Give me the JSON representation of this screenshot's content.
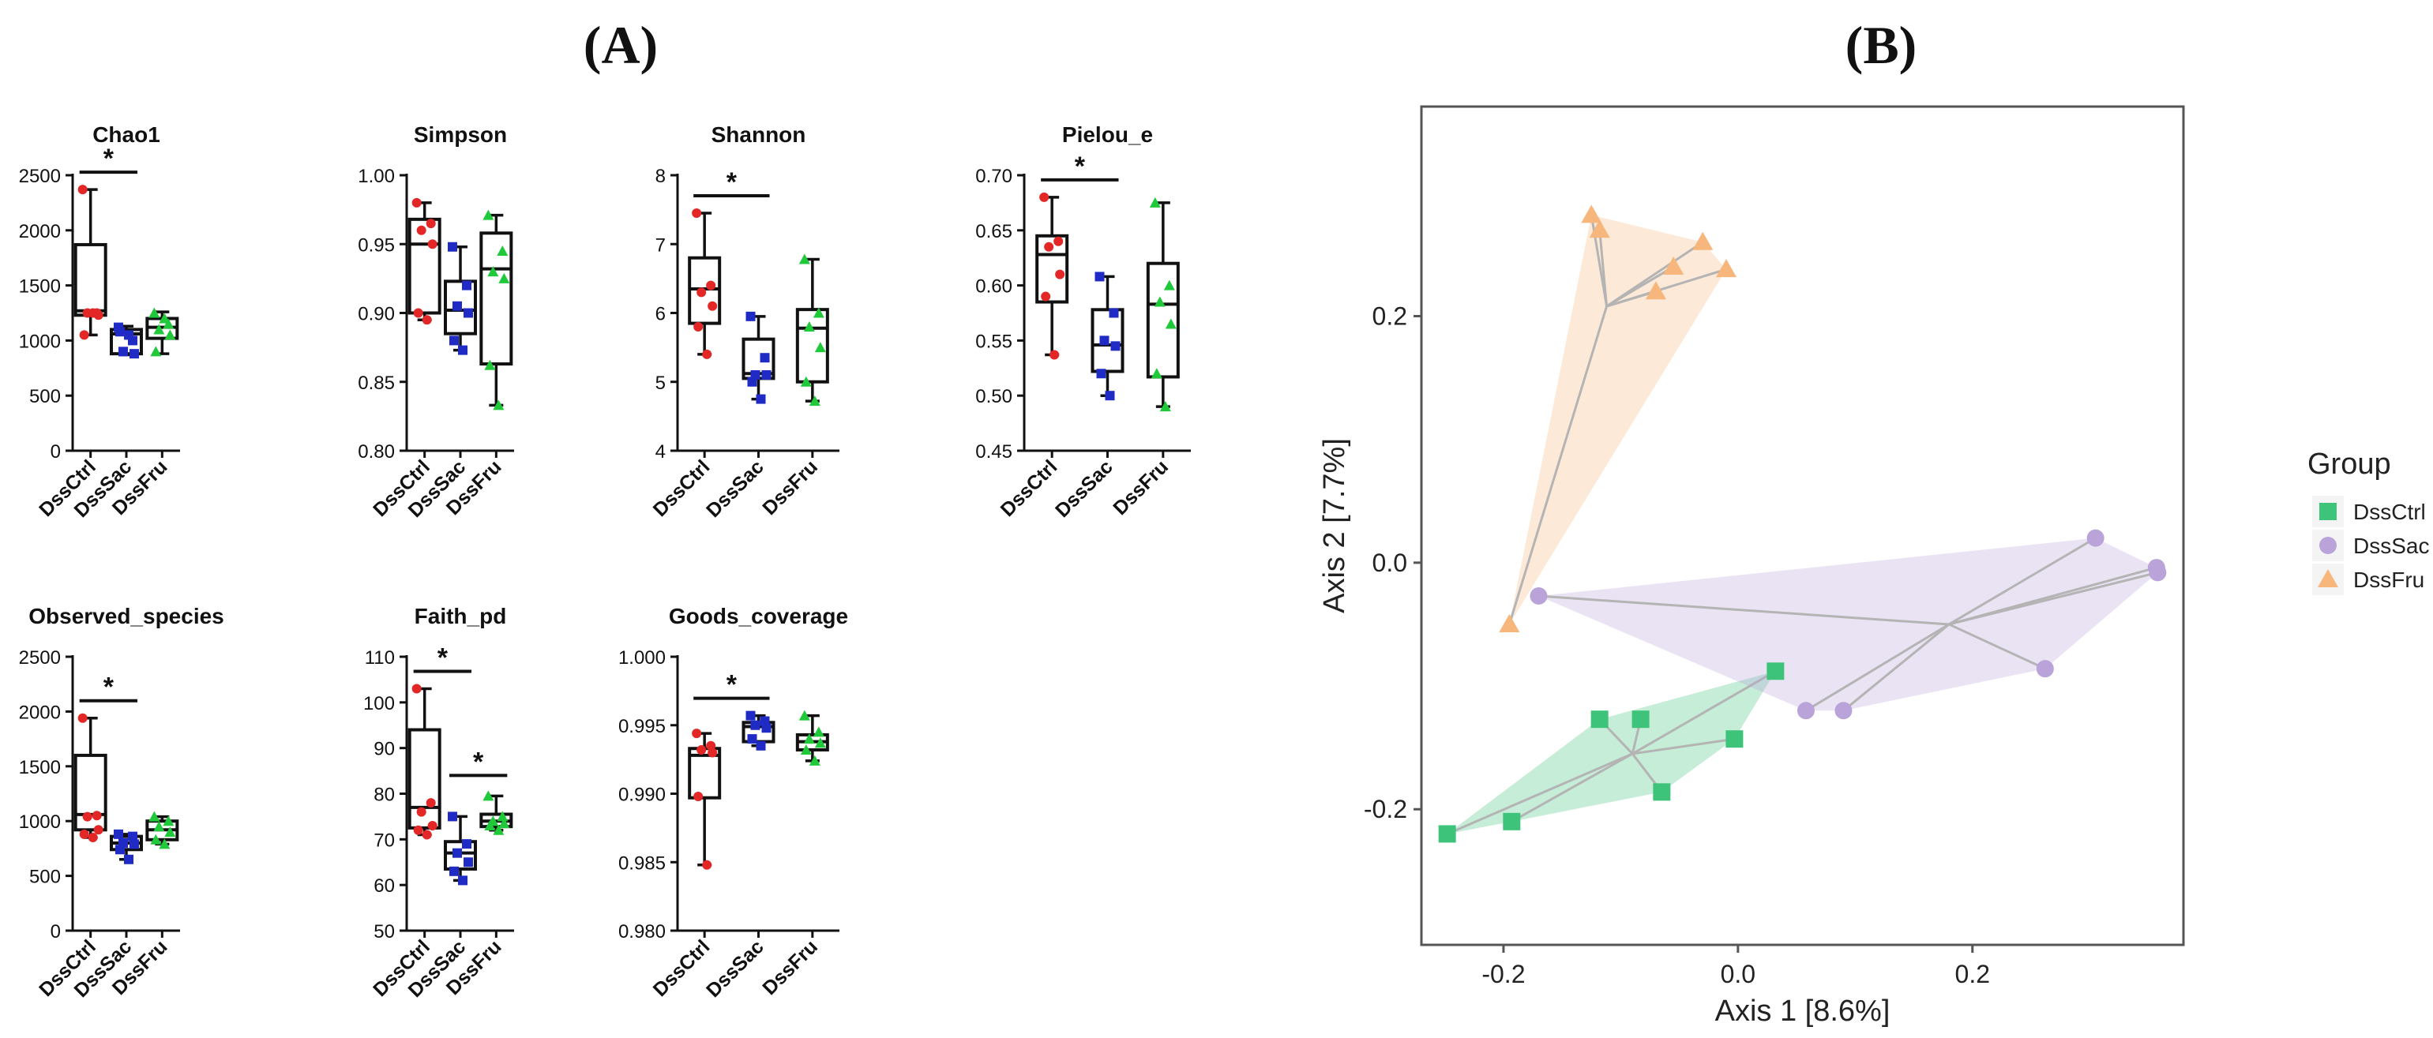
{
  "panels": {
    "a_label": "(A)",
    "b_label": "(B)"
  },
  "colors": {
    "DssCtrl_box": "#e32626",
    "DssSac_box": "#1f2bc4",
    "DssFru_box": "#1fc93a",
    "DssCtrl_pcoa": "#3ec47a",
    "DssSac_pcoa": "#b9a3d9",
    "DssFru_pcoa": "#f7b77c"
  },
  "chart_data": [
    {
      "type": "box",
      "title": "Chao1",
      "categories": [
        "DssCtrl",
        "DssSac",
        "DssFru"
      ],
      "ylim": [
        0,
        2500
      ],
      "yticks": [
        "0",
        "500",
        "1000",
        "1500",
        "2000",
        "2500"
      ],
      "groups": [
        {
          "min": 1050,
          "q1": 1230,
          "median": 1270,
          "q3": 1870,
          "max": 2370,
          "points": [
            2370,
            1250,
            1250,
            1230,
            1050,
            1250
          ]
        },
        {
          "min": 870,
          "q1": 880,
          "median": 1060,
          "q3": 1100,
          "max": 1130,
          "points": [
            1120,
            1000,
            900,
            880,
            1080,
            1050
          ]
        },
        {
          "min": 880,
          "q1": 1020,
          "median": 1120,
          "q3": 1200,
          "max": 1260,
          "points": [
            1250,
            1150,
            1100,
            1050,
            900,
            1200
          ]
        }
      ],
      "significance": [
        {
          "from": 0,
          "to": 1,
          "label": "*"
        }
      ]
    },
    {
      "type": "box",
      "title": "Simpson",
      "categories": [
        "DssCtrl",
        "DssSac",
        "DssFru"
      ],
      "ylim": [
        0.8,
        1.0
      ],
      "yticks": [
        "0.80",
        "0.85",
        "0.90",
        "0.95",
        "1.00"
      ],
      "groups": [
        {
          "min": 0.895,
          "q1": 0.9,
          "median": 0.95,
          "q3": 0.968,
          "max": 0.98,
          "points": [
            0.98,
            0.965,
            0.96,
            0.95,
            0.9,
            0.895
          ]
        },
        {
          "min": 0.873,
          "q1": 0.885,
          "median": 0.902,
          "q3": 0.923,
          "max": 0.948,
          "points": [
            0.948,
            0.92,
            0.905,
            0.9,
            0.88,
            0.873
          ]
        },
        {
          "min": 0.833,
          "q1": 0.863,
          "median": 0.932,
          "q3": 0.958,
          "max": 0.971,
          "points": [
            0.971,
            0.945,
            0.93,
            0.925,
            0.862,
            0.833
          ]
        }
      ],
      "significance": []
    },
    {
      "type": "box",
      "title": "Shannon",
      "categories": [
        "DssCtrl",
        "DssSac",
        "DssFru"
      ],
      "ylim": [
        4,
        8
      ],
      "yticks": [
        "4",
        "5",
        "6",
        "7",
        "8"
      ],
      "groups": [
        {
          "min": 5.4,
          "q1": 5.85,
          "median": 6.35,
          "q3": 6.8,
          "max": 7.45,
          "points": [
            7.45,
            6.4,
            6.3,
            6.1,
            5.8,
            5.4
          ]
        },
        {
          "min": 4.75,
          "q1": 5.05,
          "median": 5.12,
          "q3": 5.62,
          "max": 5.95,
          "points": [
            5.95,
            5.35,
            5.1,
            5.1,
            5.0,
            4.75
          ]
        },
        {
          "min": 4.72,
          "q1": 5.0,
          "median": 5.78,
          "q3": 6.05,
          "max": 6.78,
          "points": [
            6.78,
            6.0,
            5.8,
            5.5,
            5.0,
            4.72
          ]
        }
      ],
      "significance": [
        {
          "from": 0,
          "to": 1,
          "label": "*"
        }
      ]
    },
    {
      "type": "box",
      "title": "Pielou_e",
      "categories": [
        "DssCtrl",
        "DssSac",
        "DssFru"
      ],
      "ylim": [
        0.45,
        0.7
      ],
      "yticks": [
        "0.45",
        "0.50",
        "0.55",
        "0.60",
        "0.65",
        "0.70"
      ],
      "groups": [
        {
          "min": 0.537,
          "q1": 0.585,
          "median": 0.628,
          "q3": 0.645,
          "max": 0.68,
          "points": [
            0.68,
            0.64,
            0.635,
            0.61,
            0.59,
            0.537
          ]
        },
        {
          "min": 0.5,
          "q1": 0.522,
          "median": 0.546,
          "q3": 0.578,
          "max": 0.608,
          "points": [
            0.608,
            0.575,
            0.55,
            0.545,
            0.52,
            0.5
          ]
        },
        {
          "min": 0.49,
          "q1": 0.517,
          "median": 0.583,
          "q3": 0.62,
          "max": 0.675,
          "points": [
            0.675,
            0.6,
            0.585,
            0.565,
            0.52,
            0.49
          ]
        }
      ],
      "significance": [
        {
          "from": 0,
          "to": 1,
          "label": "*"
        }
      ]
    },
    {
      "type": "box",
      "title": "Observed_species",
      "categories": [
        "DssCtrl",
        "DssSac",
        "DssFru"
      ],
      "ylim": [
        0,
        2500
      ],
      "yticks": [
        "0",
        "500",
        "1000",
        "1500",
        "2000",
        "2500"
      ],
      "groups": [
        {
          "min": 850,
          "q1": 920,
          "median": 1060,
          "q3": 1600,
          "max": 1940,
          "points": [
            1940,
            1050,
            1040,
            920,
            880,
            850
          ]
        },
        {
          "min": 650,
          "q1": 740,
          "median": 800,
          "q3": 860,
          "max": 880,
          "points": [
            880,
            860,
            800,
            790,
            740,
            650
          ]
        },
        {
          "min": 790,
          "q1": 830,
          "median": 920,
          "q3": 1000,
          "max": 1040,
          "points": [
            1040,
            1000,
            950,
            900,
            830,
            790
          ]
        }
      ],
      "significance": [
        {
          "from": 0,
          "to": 1,
          "label": "*"
        }
      ]
    },
    {
      "type": "box",
      "title": "Faith_pd",
      "categories": [
        "DssCtrl",
        "DssSac",
        "DssFru"
      ],
      "ylim": [
        50,
        110
      ],
      "yticks": [
        "50",
        "60",
        "70",
        "80",
        "90",
        "100",
        "110"
      ],
      "groups": [
        {
          "min": 71,
          "q1": 72.5,
          "median": 77,
          "q3": 94,
          "max": 103,
          "points": [
            103,
            78,
            76,
            73,
            72,
            71
          ]
        },
        {
          "min": 61,
          "q1": 63.5,
          "median": 67,
          "q3": 69.5,
          "max": 75,
          "points": [
            75,
            69,
            67,
            65,
            63,
            61
          ]
        },
        {
          "min": 72,
          "q1": 72.8,
          "median": 74,
          "q3": 75.5,
          "max": 79.5,
          "points": [
            79.5,
            75,
            74,
            73.5,
            73,
            72
          ]
        }
      ],
      "significance": [
        {
          "from": 0,
          "to": 1,
          "label": "*"
        },
        {
          "from": 1,
          "to": 2,
          "label": "*"
        }
      ]
    },
    {
      "type": "box",
      "title": "Goods_coverage",
      "categories": [
        "DssCtrl",
        "DssSac",
        "DssFru"
      ],
      "ylim": [
        0.98,
        1.0
      ],
      "yticks": [
        "0.980",
        "0.985",
        "0.990",
        "0.995",
        "1.000"
      ],
      "groups": [
        {
          "min": 0.9848,
          "q1": 0.9897,
          "median": 0.9928,
          "q3": 0.9933,
          "max": 0.9944,
          "points": [
            0.9944,
            0.9935,
            0.9932,
            0.993,
            0.9898,
            0.9848
          ]
        },
        {
          "min": 0.9935,
          "q1": 0.9938,
          "median": 0.9949,
          "q3": 0.9952,
          "max": 0.9957,
          "points": [
            0.9957,
            0.9953,
            0.995,
            0.9948,
            0.994,
            0.9935
          ]
        },
        {
          "min": 0.9924,
          "q1": 0.9932,
          "median": 0.9938,
          "q3": 0.9943,
          "max": 0.9957,
          "points": [
            0.9957,
            0.9945,
            0.994,
            0.9937,
            0.9932,
            0.9924
          ]
        }
      ],
      "significance": [
        {
          "from": 0,
          "to": 1,
          "label": "*"
        }
      ]
    },
    {
      "type": "scatter",
      "title": "",
      "xlabel": "Axis 1 [8.6%]",
      "ylabel": "Axis 2 [7.7%]",
      "xlim": [
        -0.27,
        0.38
      ],
      "ylim": [
        -0.31,
        0.37
      ],
      "xticks": [
        "-0.2",
        "0.0",
        "0.2"
      ],
      "xtick_values": [
        -0.2,
        0.0,
        0.2
      ],
      "yticks": [
        "-0.2",
        "0.0",
        "0.2"
      ],
      "ytick_values": [
        -0.2,
        0.0,
        0.2
      ],
      "legend_title": "Group",
      "legend_position": "right",
      "series": [
        {
          "name": "DssCtrl",
          "marker": "square",
          "centroid": [
            -0.09,
            -0.155
          ],
          "points": [
            [
              -0.248,
              -0.22
            ],
            [
              -0.193,
              -0.21
            ],
            [
              -0.118,
              -0.127
            ],
            [
              -0.083,
              -0.127
            ],
            [
              -0.065,
              -0.186
            ],
            [
              -0.003,
              -0.143
            ],
            [
              0.032,
              -0.088
            ]
          ]
        },
        {
          "name": "DssSac",
          "marker": "circle",
          "centroid": [
            0.18,
            -0.05
          ],
          "points": [
            [
              -0.17,
              -0.027
            ],
            [
              0.058,
              -0.12
            ],
            [
              0.09,
              -0.12
            ],
            [
              0.262,
              -0.086
            ],
            [
              0.305,
              0.02
            ],
            [
              0.357,
              -0.004
            ],
            [
              0.358,
              -0.008
            ]
          ]
        },
        {
          "name": "DssFru",
          "marker": "triangle",
          "centroid": [
            -0.112,
            0.208
          ],
          "points": [
            [
              -0.195,
              -0.05
            ],
            [
              -0.125,
              0.282
            ],
            [
              -0.118,
              0.27
            ],
            [
              -0.07,
              0.22
            ],
            [
              -0.055,
              0.24
            ],
            [
              -0.03,
              0.26
            ],
            [
              -0.01,
              0.238
            ]
          ]
        }
      ]
    }
  ]
}
